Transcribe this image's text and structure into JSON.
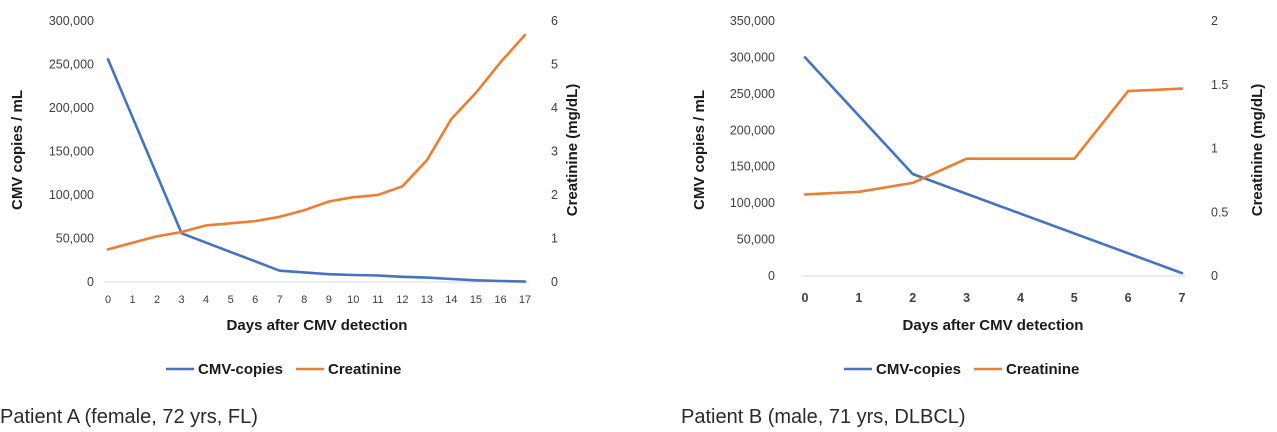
{
  "chart_data": [
    {
      "type": "line",
      "caption": "Patient A (female, 72 yrs, FL)",
      "xlabel": "Days after CMV detection",
      "ylabel": "CMV copies / mL",
      "y2label": "Creatinine (mg/dL)",
      "x": [
        0,
        1,
        2,
        3,
        4,
        5,
        6,
        7,
        8,
        9,
        10,
        11,
        12,
        13,
        14,
        15,
        16,
        17
      ],
      "x_tick_labels": [
        "0",
        "1",
        "2",
        "3",
        "4",
        "5",
        "6",
        "7",
        "8",
        "9",
        "10",
        "11",
        "12",
        "13",
        "14",
        "15",
        "16",
        "17"
      ],
      "ylim": [
        0,
        300000
      ],
      "y_ticks": [
        0,
        50000,
        100000,
        150000,
        200000,
        250000,
        300000
      ],
      "y_tick_labels": [
        "0",
        "50,000",
        "100,000",
        "150,000",
        "200,000",
        "250,000",
        "300,000"
      ],
      "y2lim": [
        0,
        6
      ],
      "y2_ticks": [
        0,
        1,
        2,
        3,
        4,
        5,
        6
      ],
      "y2_tick_labels": [
        "0",
        "1",
        "2",
        "3",
        "4",
        "5",
        "6"
      ],
      "legend_position": "bottom",
      "series": [
        {
          "name": "CMV-copies",
          "axis": "left",
          "color": "#4472C4",
          "points": [
            [
              0,
              256000
            ],
            [
              3,
              56000
            ],
            [
              7,
              13000
            ],
            [
              8,
              11000
            ],
            [
              9,
              9000
            ],
            [
              10,
              8000
            ],
            [
              11,
              7500
            ],
            [
              12,
              6000
            ],
            [
              13,
              5000
            ],
            [
              14,
              3500
            ],
            [
              15,
              2000
            ],
            [
              16,
              1200
            ],
            [
              17,
              500
            ]
          ]
        },
        {
          "name": "Creatinine",
          "axis": "right",
          "color": "#ED7D31",
          "points": [
            [
              0,
              0.75
            ],
            [
              1,
              0.9
            ],
            [
              2,
              1.05
            ],
            [
              3,
              1.15
            ],
            [
              4,
              1.3
            ],
            [
              5,
              1.35
            ],
            [
              6,
              1.4
            ],
            [
              7,
              1.5
            ],
            [
              8,
              1.65
            ],
            [
              9,
              1.85
            ],
            [
              10,
              1.95
            ],
            [
              11,
              2.0
            ],
            [
              12,
              2.2
            ],
            [
              13,
              2.8
            ],
            [
              14,
              3.75
            ],
            [
              15,
              4.35
            ],
            [
              16,
              5.05
            ],
            [
              17,
              5.68
            ]
          ]
        }
      ]
    },
    {
      "type": "line",
      "caption": "Patient B (male, 71 yrs, DLBCL)",
      "xlabel": "Days after CMV detection",
      "ylabel": "CMV copies / mL",
      "y2label": "Creatinine (mg/dL)",
      "x": [
        0,
        1,
        2,
        3,
        4,
        5,
        6,
        7
      ],
      "x_tick_labels": [
        "0",
        "1",
        "2",
        "3",
        "4",
        "5",
        "6",
        "7"
      ],
      "ylim": [
        0,
        350000
      ],
      "y_ticks": [
        0,
        50000,
        100000,
        150000,
        200000,
        250000,
        300000,
        350000
      ],
      "y_tick_labels": [
        "0",
        "50,000",
        "100,000",
        "150,000",
        "200,000",
        "250,000",
        "300,000",
        "350,000"
      ],
      "y2lim": [
        0,
        2
      ],
      "y2_ticks": [
        0,
        0.5,
        1,
        1.5,
        2
      ],
      "y2_tick_labels": [
        "0",
        "0.5",
        "1",
        "1.5",
        "2"
      ],
      "legend_position": "bottom",
      "series": [
        {
          "name": "CMV-copies",
          "axis": "left",
          "color": "#4472C4",
          "points": [
            [
              0,
              300000
            ],
            [
              2,
              140000
            ],
            [
              7,
              4000
            ]
          ]
        },
        {
          "name": "Creatinine",
          "axis": "right",
          "color": "#ED7D31",
          "points": [
            [
              0,
              0.64
            ],
            [
              1,
              0.66
            ],
            [
              2,
              0.73
            ],
            [
              3,
              0.92
            ],
            [
              4,
              0.92
            ],
            [
              5,
              0.92
            ],
            [
              6,
              1.45
            ],
            [
              7,
              1.47
            ]
          ]
        }
      ]
    }
  ]
}
